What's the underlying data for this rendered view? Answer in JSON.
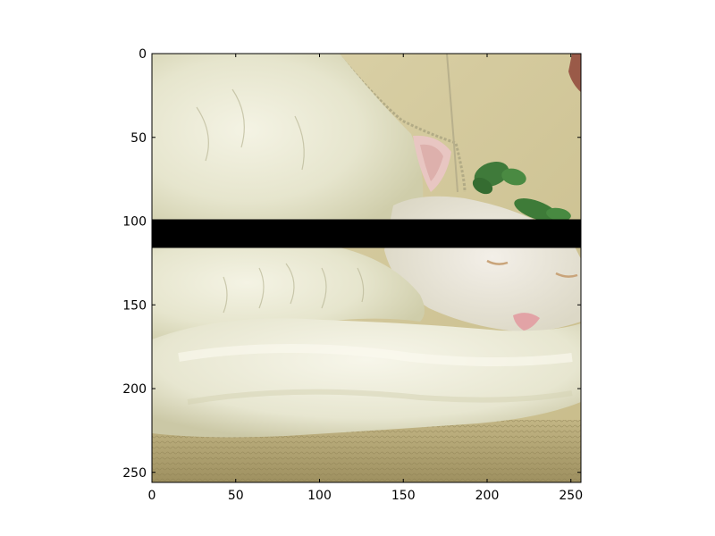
{
  "figure": {
    "background": "#ffffff",
    "frame_color": "#000000"
  },
  "image": {
    "subject": "white cat curled up asleep on a woven mat",
    "occlusion_band_rows": [
      100,
      116
    ],
    "occlusion_color": "#000000"
  },
  "axes": {
    "xlim": [
      0,
      256
    ],
    "ylim": [
      256,
      0
    ],
    "x_ticks": [
      "0",
      "50",
      "100",
      "150",
      "200",
      "250"
    ],
    "y_ticks": [
      "0",
      "50",
      "100",
      "150",
      "200",
      "250"
    ]
  }
}
